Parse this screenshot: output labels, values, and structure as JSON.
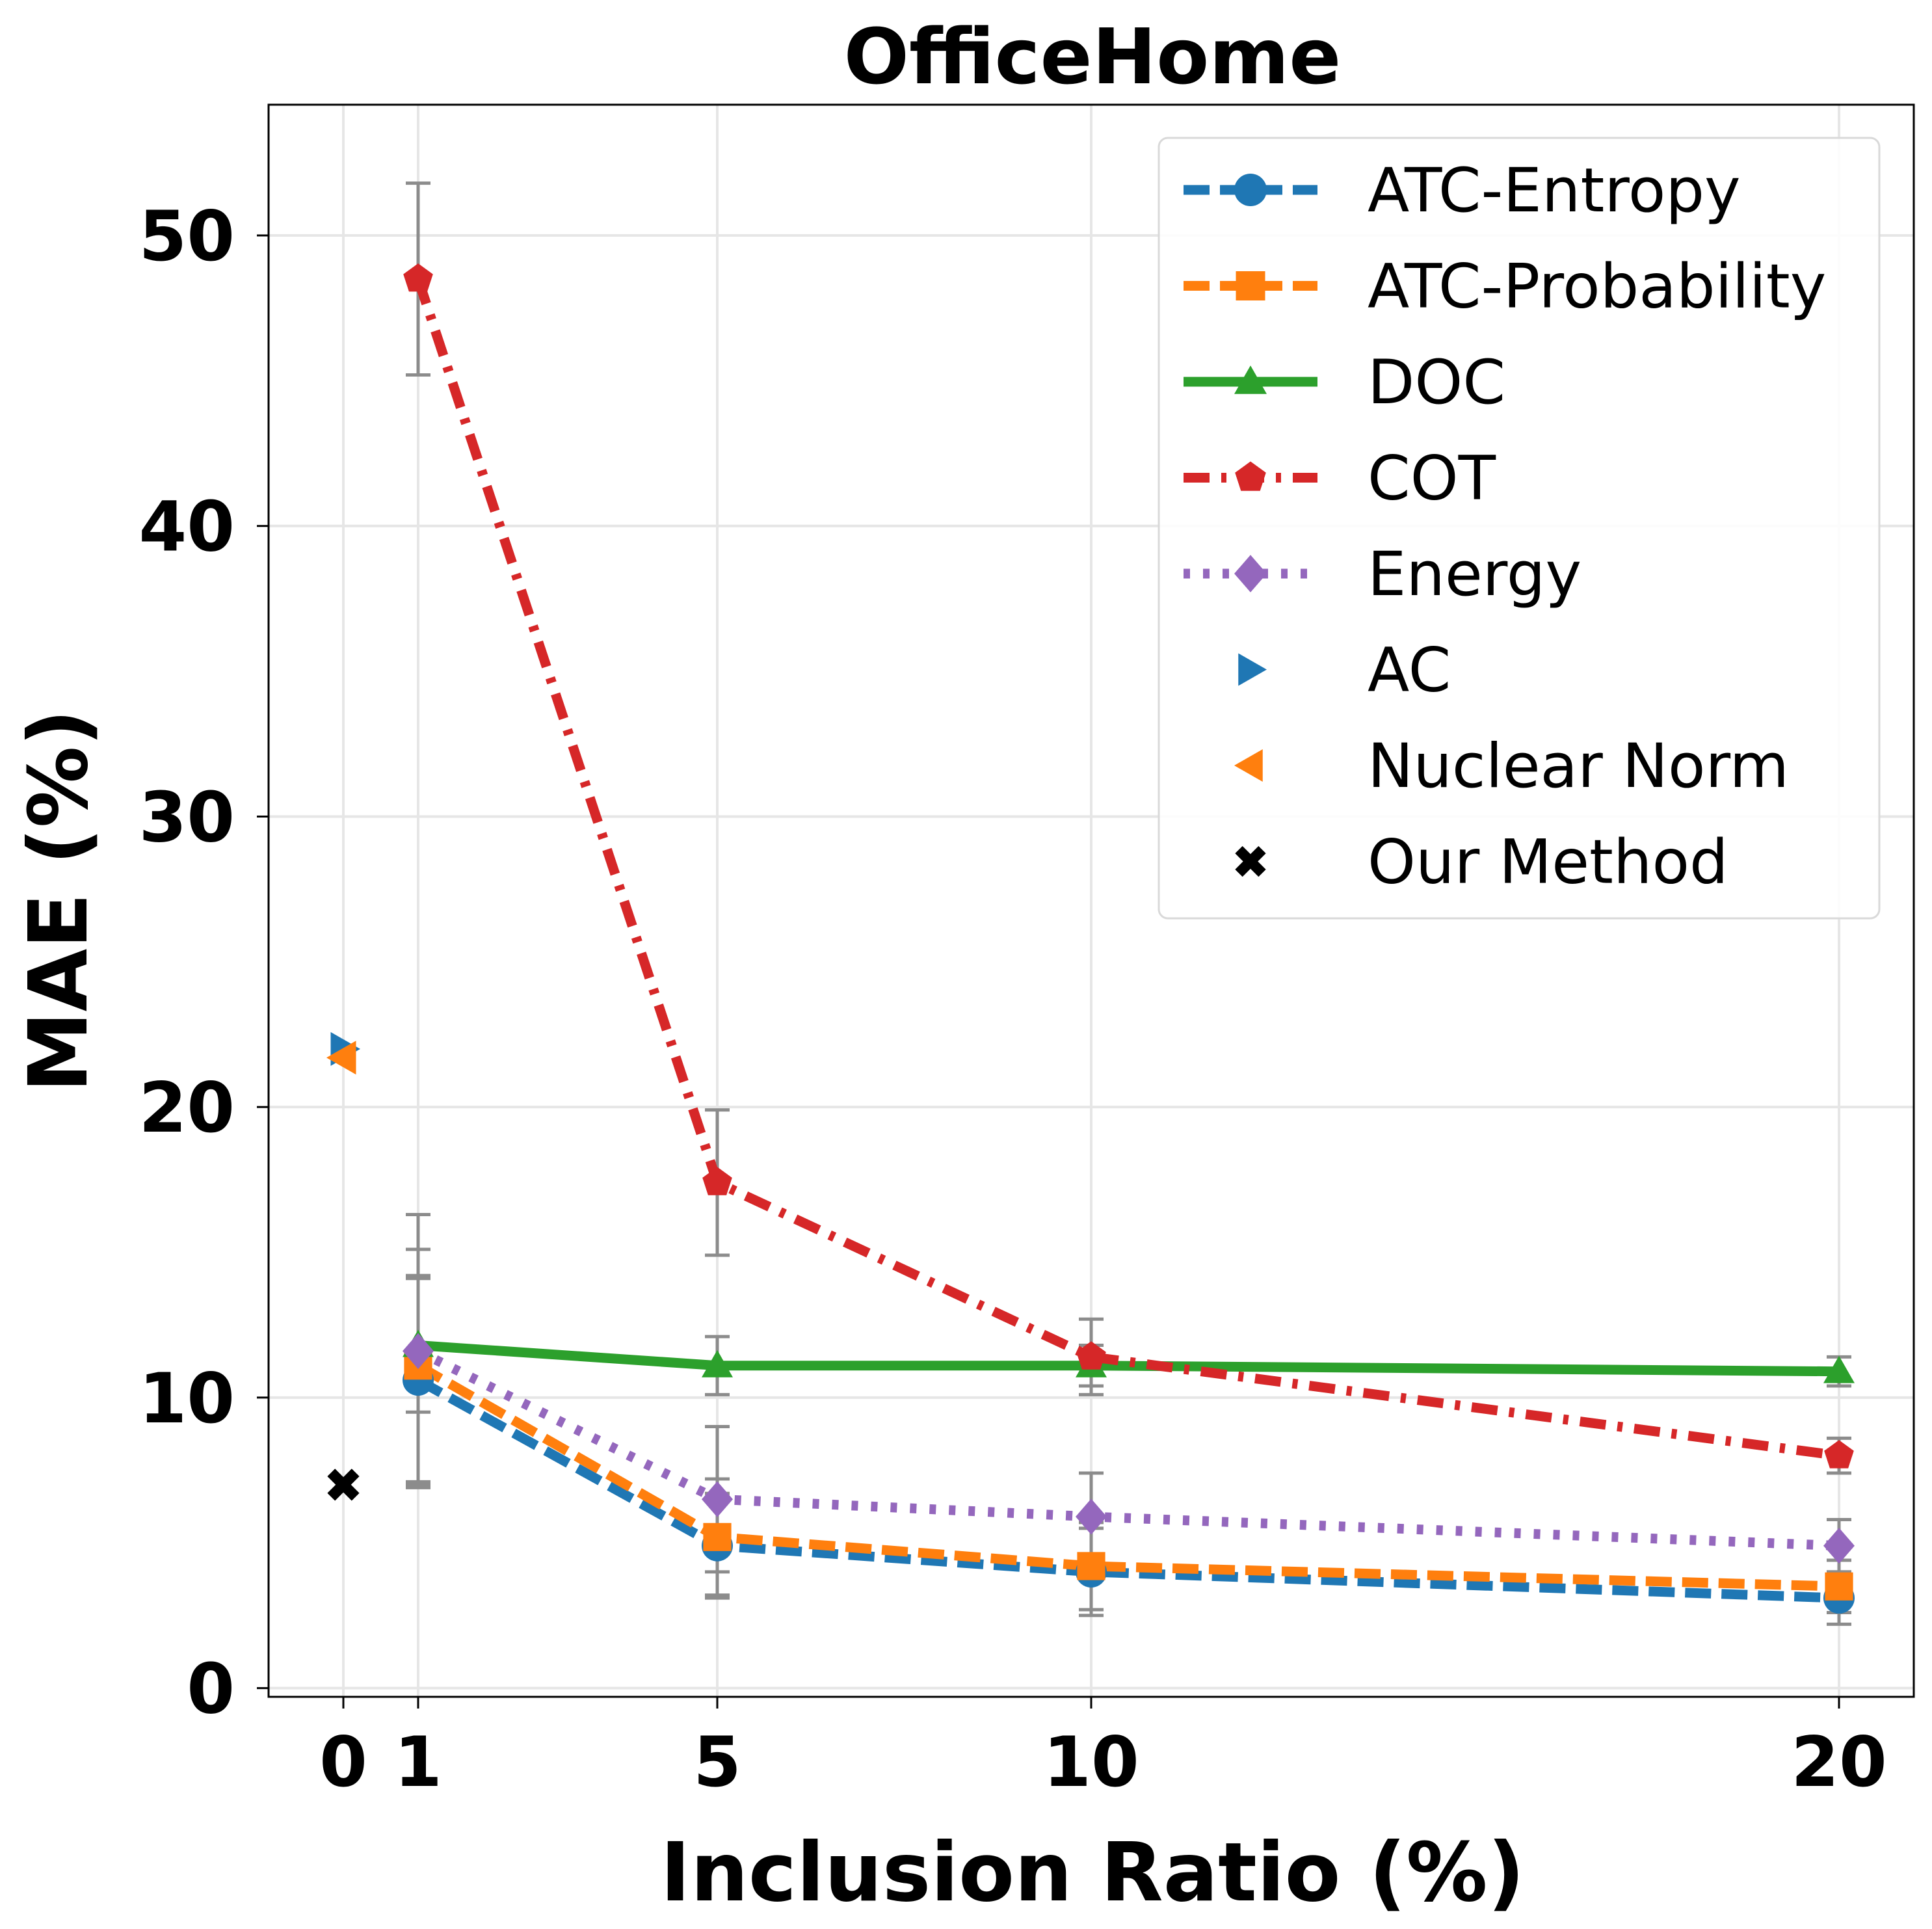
{
  "chart_data": {
    "type": "line",
    "title": "OfficeHome",
    "xlabel": "Inclusion Ratio (%)",
    "ylabel": "MAE (%)",
    "xlim": [
      -1.0,
      21.0
    ],
    "ylim": [
      -0.3,
      54.5
    ],
    "xticks": [
      0,
      1,
      5,
      10,
      20
    ],
    "yticks": [
      0,
      10,
      20,
      30,
      40,
      50
    ],
    "grid": true,
    "legend_position": "upper right",
    "x": [
      1,
      5,
      10,
      20
    ],
    "series": [
      {
        "name": "ATC-Entropy",
        "color": "#1f77b4",
        "linestyle": "dashed",
        "marker": "circle",
        "values": [
          10.6,
          4.9,
          4.0,
          3.1
        ],
        "errors": [
          3.6,
          1.8,
          1.5,
          0.9
        ]
      },
      {
        "name": "ATC-Probability",
        "color": "#ff7f0e",
        "linestyle": "dashed",
        "marker": "square",
        "values": [
          11.1,
          5.2,
          4.2,
          3.5
        ],
        "errors": [
          4.0,
          2.0,
          1.5,
          0.9
        ]
      },
      {
        "name": "DOC",
        "color": "#2ca02c",
        "linestyle": "solid",
        "marker": "triangle-up",
        "values": [
          11.8,
          11.1,
          11.1,
          10.9
        ],
        "errors": [
          2.3,
          1.0,
          0.7,
          0.5
        ]
      },
      {
        "name": "COT",
        "color": "#d62728",
        "linestyle": "dashdot",
        "marker": "pentagon",
        "values": [
          48.5,
          17.4,
          11.4,
          8.0
        ],
        "errors": [
          3.3,
          2.5,
          1.3,
          0.6
        ]
      },
      {
        "name": "Energy",
        "color": "#9467bd",
        "linestyle": "dotted",
        "marker": "diamond",
        "values": [
          11.6,
          6.5,
          5.9,
          4.9
        ],
        "errors": [
          4.7,
          2.5,
          1.5,
          0.9
        ]
      }
    ],
    "points": [
      {
        "name": "AC",
        "color": "#1f77b4",
        "marker": "triangle-right",
        "x": 0,
        "y": 22.0
      },
      {
        "name": "Nuclear Norm",
        "color": "#ff7f0e",
        "marker": "triangle-left",
        "x": 0,
        "y": 21.7
      },
      {
        "name": "Our Method",
        "color": "#000000",
        "marker": "x-bold",
        "x": 0,
        "y": 7.0
      }
    ],
    "errorbar_color": "#8c8c8c"
  }
}
